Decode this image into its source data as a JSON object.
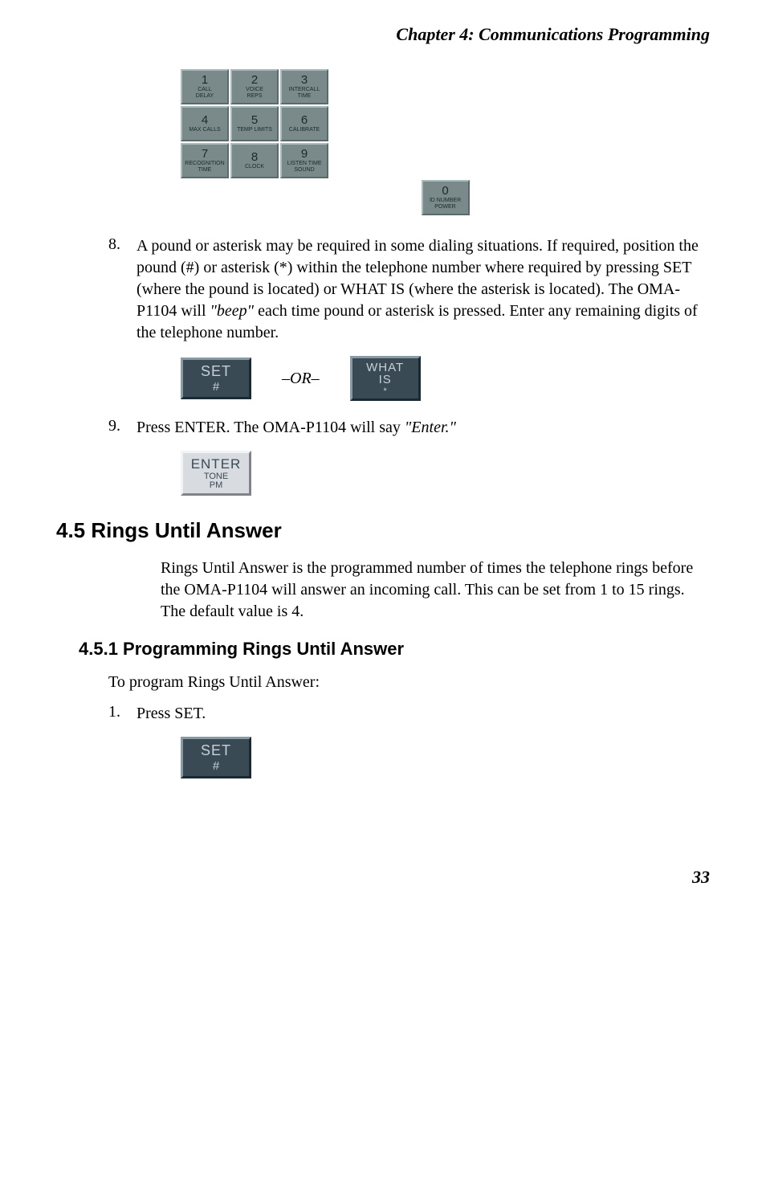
{
  "chapter_header": "Chapter 4: Communications Programming",
  "keypad": {
    "rows": [
      [
        {
          "num": "1",
          "label": "CALL\nDELAY"
        },
        {
          "num": "2",
          "label": "VOICE\nREPS"
        },
        {
          "num": "3",
          "label": "INTERCALL\nTIME"
        }
      ],
      [
        {
          "num": "4",
          "label": "MAX CALLS"
        },
        {
          "num": "5",
          "label": "TEMP LIMITS"
        },
        {
          "num": "6",
          "label": "CALIBRATE"
        }
      ],
      [
        {
          "num": "7",
          "label": "RECOGNITION\nTIME"
        },
        {
          "num": "8",
          "label": "CLOCK"
        },
        {
          "num": "9",
          "label": "LISTEN TIME\nSOUND"
        }
      ],
      [
        {
          "num": "0",
          "label": "ID NUMBER\nPOWER"
        }
      ]
    ]
  },
  "step8": {
    "num": "8.",
    "text_before_italic": "A pound or asterisk may be required in some dialing situations. If required, position the pound (#) or asterisk (*) within the telephone number where required by pressing SET (where the pound is located) or WHAT IS (where the asterisk is located). The OMA-P1104 will ",
    "italic": "\"beep\"",
    "text_after_italic": " each time pound or asterisk is pressed. Enter any remaining digits of the telephone number."
  },
  "set_button": {
    "main": "SET",
    "sub": "#"
  },
  "or_text": "–OR–",
  "whatis_button": {
    "main": "WHAT",
    "mid": "IS",
    "sub": "*"
  },
  "step9": {
    "num": "9.",
    "text_before_italic": "Press ENTER. The OMA-P1104 will say ",
    "italic": "\"Enter.\""
  },
  "enter_button": {
    "main": "ENTER",
    "sub1": "TONE",
    "sub2": "PM"
  },
  "section_4_5": {
    "heading": "4.5  Rings Until Answer",
    "body": "Rings Until Answer is the programmed number of times the telephone rings before the OMA-P1104 will answer an incoming call. This can be set from 1 to 15 rings. The default value is 4."
  },
  "section_4_5_1": {
    "heading": "4.5.1  Programming Rings Until Answer",
    "intro": "To program Rings Until Answer:",
    "step1_num": "1.",
    "step1_text": "Press SET."
  },
  "page_number": "33"
}
